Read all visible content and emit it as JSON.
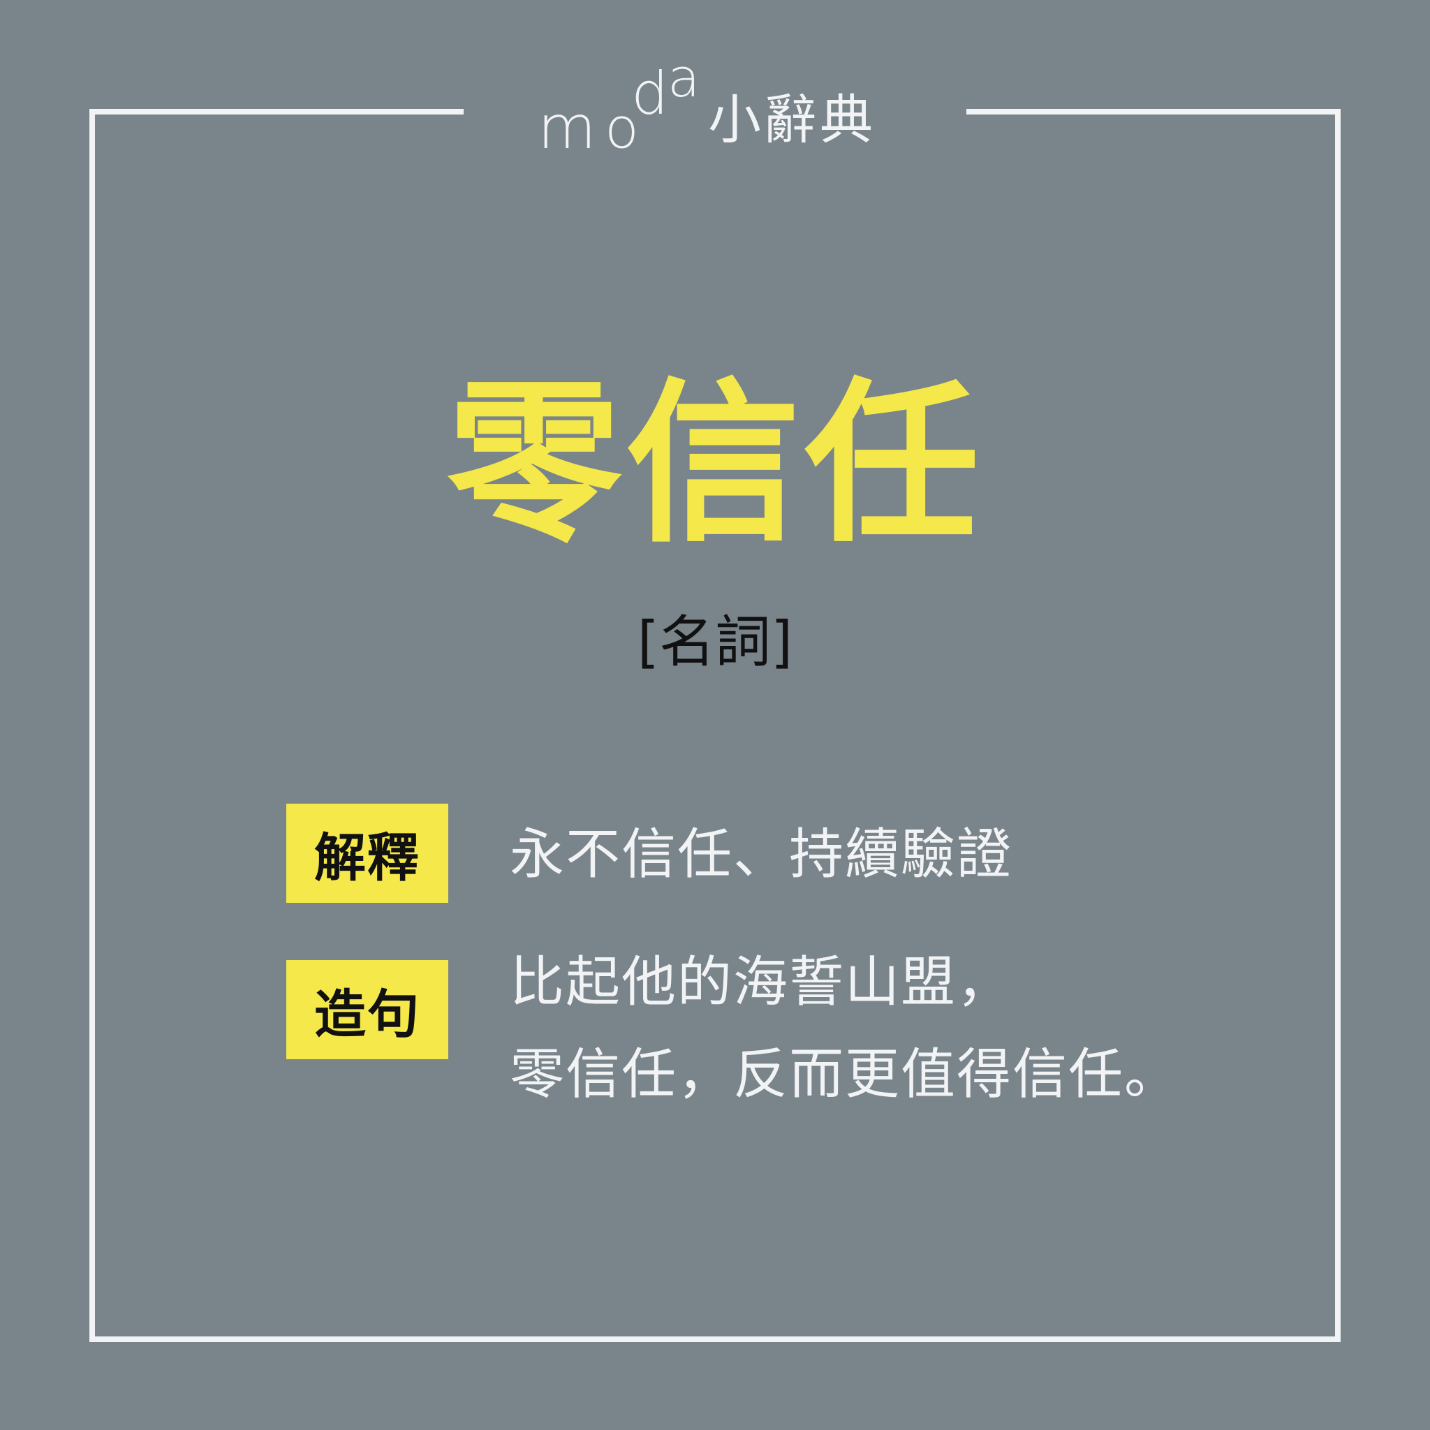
{
  "brand": {
    "logo": {
      "m": "m",
      "o": "o",
      "d": "d",
      "a": "a"
    },
    "title": "小辭典"
  },
  "entry": {
    "headword": "零信任",
    "part_of_speech": "[名詞]"
  },
  "definition": {
    "label": "解釋",
    "text": "永不信任、持續驗證"
  },
  "example": {
    "label": "造句",
    "lines": [
      "比起他的海誓山盟，",
      "零信任，反而更值得信任。"
    ]
  },
  "colors": {
    "background": "#7a848b",
    "accent": "#f5e84a",
    "frame": "#f2f3f4",
    "label_text": "#111111"
  }
}
